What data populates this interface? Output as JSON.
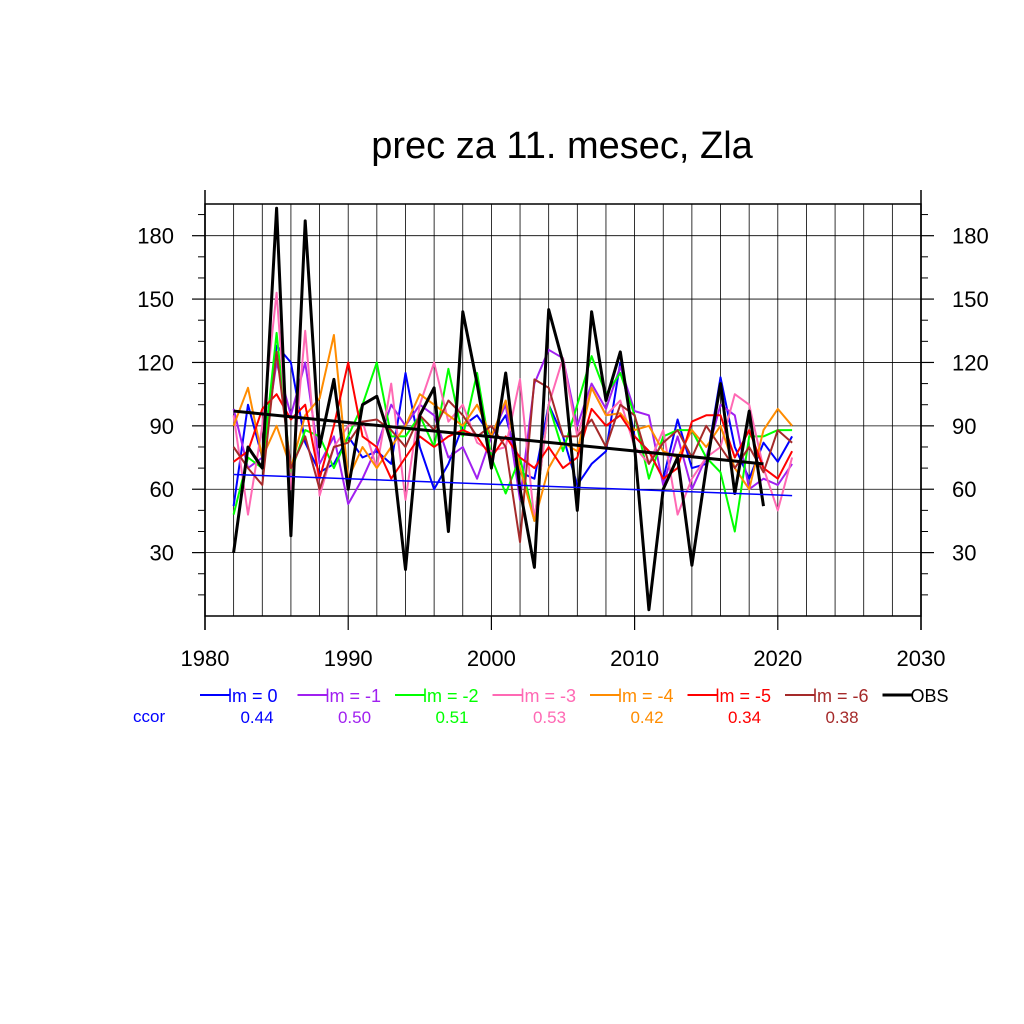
{
  "chart_data": {
    "type": "line",
    "title": "prec za 11. mesec, Zla",
    "xlabel": "",
    "ylabel": "",
    "xlim": [
      1980,
      2030
    ],
    "ylim": [
      0,
      195
    ],
    "grid": true,
    "x_ticks": [
      1980,
      1990,
      2000,
      2010,
      2020,
      2030
    ],
    "x_tick_labels": [
      "1980",
      "1990",
      "2000",
      "2010",
      "2020",
      "2030"
    ],
    "y_ticks": [
      30,
      60,
      90,
      120,
      150,
      180
    ],
    "y_tick_labels": [
      "30",
      "60",
      "90",
      "120",
      "150",
      "180"
    ],
    "ccor_label": "ccor",
    "x": [
      1982,
      1983,
      1984,
      1985,
      1986,
      1987,
      1988,
      1989,
      1990,
      1991,
      1992,
      1993,
      1994,
      1995,
      1996,
      1997,
      1998,
      1999,
      2000,
      2001,
      2002,
      2003,
      2004,
      2005,
      2006,
      2007,
      2008,
      2009,
      2010,
      2011,
      2012,
      2013,
      2014,
      2015,
      2016,
      2017,
      2018,
      2019,
      2020,
      2021
    ],
    "series": [
      {
        "name": "lm = 0",
        "color": "#0000ff",
        "ccor": "0.44",
        "values": [
          52,
          100,
          75,
          128,
          120,
          82,
          68,
          72,
          85,
          75,
          78,
          72,
          115,
          80,
          60,
          72,
          90,
          95,
          85,
          95,
          68,
          65,
          100,
          85,
          62,
          72,
          78,
          120,
          85,
          78,
          65,
          93,
          70,
          72,
          113,
          80,
          65,
          82,
          73,
          85
        ],
        "trend": [
          67,
          57
        ]
      },
      {
        "name": "lm = -1",
        "color": "#a020f0",
        "ccor": "0.50",
        "values": [
          98,
          70,
          75,
          120,
          95,
          120,
          72,
          85,
          53,
          65,
          80,
          100,
          90,
          100,
          95,
          75,
          80,
          65,
          85,
          100,
          55,
          110,
          126,
          122,
          90,
          110,
          98,
          118,
          97,
          95,
          62,
          85,
          60,
          75,
          100,
          95,
          60,
          65,
          62,
          72
        ],
        "trend": [],
        "hideInLegend": false
      },
      {
        "name": "lm = -2",
        "color": "#00ff00",
        "ccor": "0.51",
        "values": [
          48,
          75,
          70,
          134,
          68,
          88,
          85,
          70,
          85,
          100,
          120,
          85,
          85,
          95,
          80,
          117,
          85,
          115,
          75,
          58,
          75,
          45,
          100,
          78,
          100,
          123,
          105,
          115,
          95,
          65,
          85,
          88,
          88,
          75,
          68,
          40,
          85,
          85,
          88,
          88
        ],
        "trend": []
      },
      {
        "name": "lm = -3",
        "color": "#ff69b4",
        "ccor": "0.53",
        "values": [
          95,
          48,
          90,
          153,
          60,
          135,
          57,
          80,
          90,
          92,
          70,
          110,
          55,
          100,
          120,
          92,
          100,
          82,
          78,
          80,
          112,
          45,
          100,
          122,
          85,
          108,
          95,
          102,
          80,
          72,
          88,
          48,
          65,
          75,
          80,
          105,
          100,
          70,
          50,
          75
        ],
        "trend": []
      },
      {
        "name": "lm = -4",
        "color": "#ff8c00",
        "ccor": "0.42",
        "values": [
          90,
          108,
          75,
          90,
          70,
          95,
          103,
          133,
          65,
          80,
          70,
          80,
          90,
          105,
          100,
          95,
          90,
          100,
          85,
          102,
          70,
          45,
          70,
          82,
          78,
          108,
          95,
          96,
          88,
          90,
          78,
          75,
          88,
          80,
          90,
          70,
          60,
          88,
          98,
          90
        ],
        "trend": []
      },
      {
        "name": "lm = -5",
        "color": "#ff0000",
        "ccor": "0.34",
        "values": [
          73,
          78,
          98,
          105,
          93,
          100,
          65,
          90,
          120,
          85,
          80,
          65,
          75,
          85,
          80,
          85,
          88,
          85,
          75,
          85,
          75,
          70,
          80,
          70,
          75,
          98,
          90,
          95,
          85,
          78,
          65,
          70,
          92,
          95,
          95,
          75,
          88,
          70,
          65,
          78
        ],
        "trend": []
      },
      {
        "name": "lm = -6",
        "color": "#a52a2a",
        "ccor": "0.38",
        "values": [
          80,
          70,
          62,
          125,
          70,
          85,
          60,
          80,
          82,
          92,
          93,
          88,
          80,
          95,
          88,
          102,
          95,
          85,
          90,
          80,
          35,
          112,
          108,
          85,
          85,
          93,
          80,
          100,
          95,
          72,
          82,
          88,
          75,
          90,
          80,
          70,
          80,
          68,
          88,
          82
        ],
        "trend": []
      },
      {
        "name": "OBS",
        "color": "#000000",
        "ccor": "",
        "values": [
          30,
          80,
          70,
          193,
          38,
          187,
          80,
          112,
          60,
          100,
          104,
          82,
          22,
          95,
          108,
          40,
          144,
          110,
          70,
          115,
          60,
          23,
          145,
          120,
          50,
          144,
          102,
          125,
          80,
          3,
          60,
          75,
          24,
          70,
          110,
          58,
          97,
          52,
          null,
          null
        ],
        "trend": [
          97,
          72
        ]
      }
    ]
  }
}
